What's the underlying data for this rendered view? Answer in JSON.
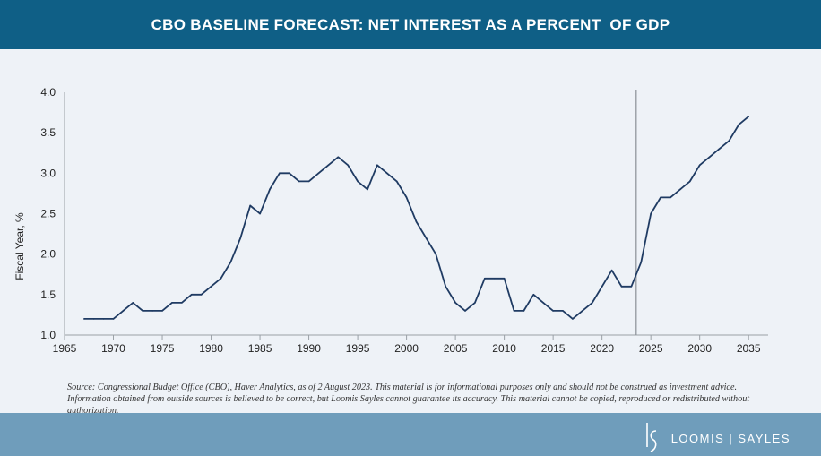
{
  "header": {
    "title": "CBO BASELINE FORECAST: NET INTEREST AS A PERCENT  OF GDP"
  },
  "chart_data": {
    "type": "line",
    "title": "CBO BASELINE FORECAST: NET INTEREST AS A PERCENT  OF GDP",
    "xlabel": "",
    "ylabel": "Fiscal Year, %",
    "xlim": [
      1965,
      2037
    ],
    "ylim": [
      1.0,
      4.0
    ],
    "x_ticks": [
      "1965",
      "1970",
      "1975",
      "1980",
      "1985",
      "1990",
      "1995",
      "2000",
      "2005",
      "2010",
      "2015",
      "2020",
      "2025",
      "2030",
      "2035"
    ],
    "y_ticks": [
      "1.0",
      "1.5",
      "2.0",
      "2.5",
      "3.0",
      "3.5",
      "4.0"
    ],
    "grid": false,
    "line_color": "#1f3b63",
    "vline_color": "#8a8f96",
    "forecast_divider_x": 2023.5,
    "series": [
      {
        "x": [
          1967,
          1968,
          1969,
          1970,
          1971,
          1972,
          1973,
          1974,
          1975,
          1976,
          1977,
          1978,
          1979,
          1980,
          1981,
          1982,
          1983,
          1984,
          1985,
          1986,
          1987,
          1988,
          1989,
          1990,
          1991,
          1992,
          1993,
          1994,
          1995,
          1996,
          1997,
          1998,
          1999,
          2000,
          2001,
          2002,
          2003,
          2004,
          2005,
          2006,
          2007,
          2008,
          2009,
          2010,
          2011,
          2012,
          2013,
          2014,
          2015,
          2016,
          2017,
          2018,
          2019,
          2020,
          2021,
          2022,
          2023,
          2024,
          2025,
          2026,
          2027,
          2028,
          2029,
          2030,
          2031,
          2032,
          2033,
          2034,
          2035
        ],
        "y": [
          1.2,
          1.2,
          1.2,
          1.2,
          1.3,
          1.4,
          1.3,
          1.3,
          1.3,
          1.4,
          1.4,
          1.5,
          1.5,
          1.6,
          1.7,
          1.9,
          2.2,
          2.6,
          2.5,
          2.8,
          3.0,
          3.0,
          2.9,
          2.9,
          3.0,
          3.1,
          3.2,
          3.1,
          2.9,
          2.8,
          3.1,
          3.0,
          2.9,
          2.7,
          2.4,
          2.2,
          2.0,
          1.6,
          1.4,
          1.3,
          1.4,
          1.7,
          1.7,
          1.7,
          1.3,
          1.3,
          1.5,
          1.4,
          1.3,
          1.3,
          1.2,
          1.3,
          1.4,
          1.6,
          1.8,
          1.6,
          1.6,
          1.9,
          2.5,
          2.7,
          2.7,
          2.8,
          2.9,
          3.1,
          3.2,
          3.3,
          3.4,
          3.6,
          3.7
        ]
      }
    ]
  },
  "source_note": "Source: Congressional Budget Office (CBO), Haver Analytics, as of 2 August 2023. This material is for informational purposes only and should not be construed as investment advice. Information obtained from outside sources is believed to be correct, but Loomis Sayles cannot guarantee its accuracy. This material cannot be copied, reproduced or redistributed without authorization.",
  "footer": {
    "logo_mark": "LS",
    "logo_text": "LOOMIS | SAYLES"
  }
}
